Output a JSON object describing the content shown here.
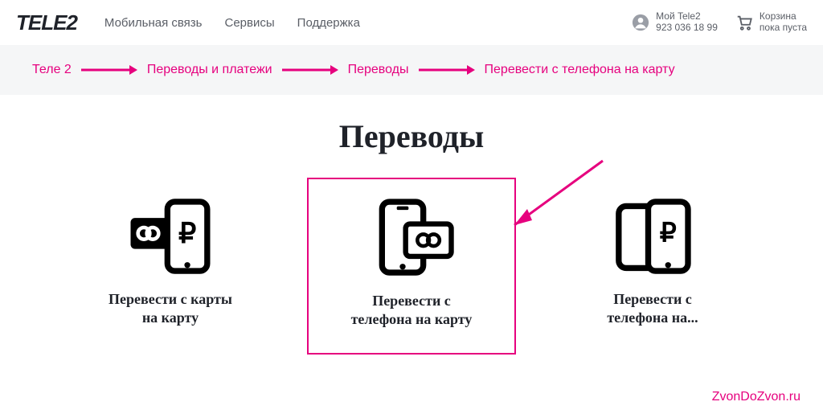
{
  "colors": {
    "accent": "#e6007e",
    "text": "#1f2229",
    "muted": "#5a5e66",
    "band_bg": "#f5f6f7"
  },
  "header": {
    "logo_text": "TELE2",
    "nav": [
      {
        "label": "Мобильная связь"
      },
      {
        "label": "Сервисы"
      },
      {
        "label": "Поддержка"
      }
    ],
    "account": {
      "line1": "Мой Tele2",
      "line2": "923 036 18 99"
    },
    "cart": {
      "line1": "Корзина",
      "line2": "пока пуста"
    }
  },
  "breadcrumb": {
    "items": [
      "Теле 2",
      "Переводы и платежи",
      "Переводы",
      "Перевести с телефона на карту"
    ]
  },
  "page": {
    "title": "Переводы"
  },
  "cards": [
    {
      "label": "Перевести с карты\nна карту"
    },
    {
      "label": "Перевести с\nтелефона на карту",
      "highlight": true
    },
    {
      "label": "Перевести с\nтелефона на..."
    }
  ],
  "watermark": "ZvonDoZvon.ru"
}
